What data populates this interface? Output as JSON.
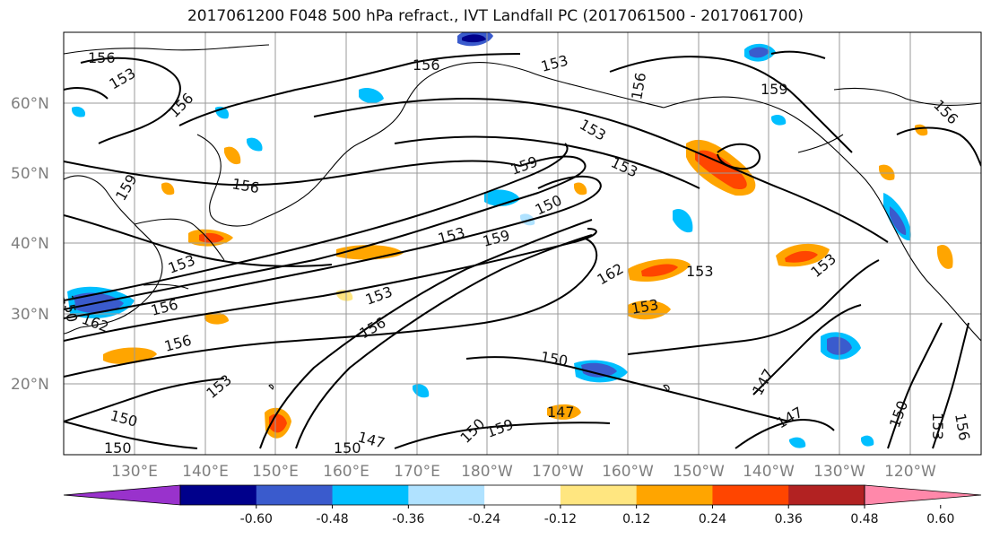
{
  "title": "2017061200 F048 500 hPa refract., IVT Landfall PC (2017061500 - 2017061700)",
  "map": {
    "lat_labels": [
      "60°N",
      "50°N",
      "40°N",
      "30°N",
      "20°N"
    ],
    "lon_labels": [
      "130°E",
      "140°E",
      "150°E",
      "160°E",
      "170°E",
      "180°W",
      "170°W",
      "160°W",
      "150°W",
      "140°W",
      "130°W",
      "120°W"
    ],
    "contour_labels": [
      "156",
      "153",
      "156",
      "156",
      "156",
      "153",
      "159",
      "156",
      "153",
      "159",
      "156",
      "153",
      "159",
      "150",
      "153",
      "159",
      "153",
      "162",
      "153",
      "153",
      "156",
      "153",
      "153",
      "150",
      "156",
      "156",
      "150",
      "147",
      "153",
      "150",
      "147",
      "147",
      "147",
      "150",
      "153",
      "156",
      "150",
      "150",
      "150",
      "159",
      "162"
    ],
    "colors": {
      "land_outline": "#000000",
      "grid": "#9a9a9a",
      "contour": "#000000"
    }
  },
  "colorbar": {
    "ticks": [
      "-0.60",
      "-0.48",
      "-0.36",
      "-0.24",
      "-0.12",
      "0.12",
      "0.24",
      "0.36",
      "0.48",
      "0.60"
    ],
    "colors": [
      "#9932cc",
      "#00008b",
      "#3a5bcd",
      "#00bfff",
      "#b0e2ff",
      "#ffffff",
      "#ffe680",
      "#ffa500",
      "#ff4500",
      "#b22222",
      "#ff88aa"
    ]
  }
}
